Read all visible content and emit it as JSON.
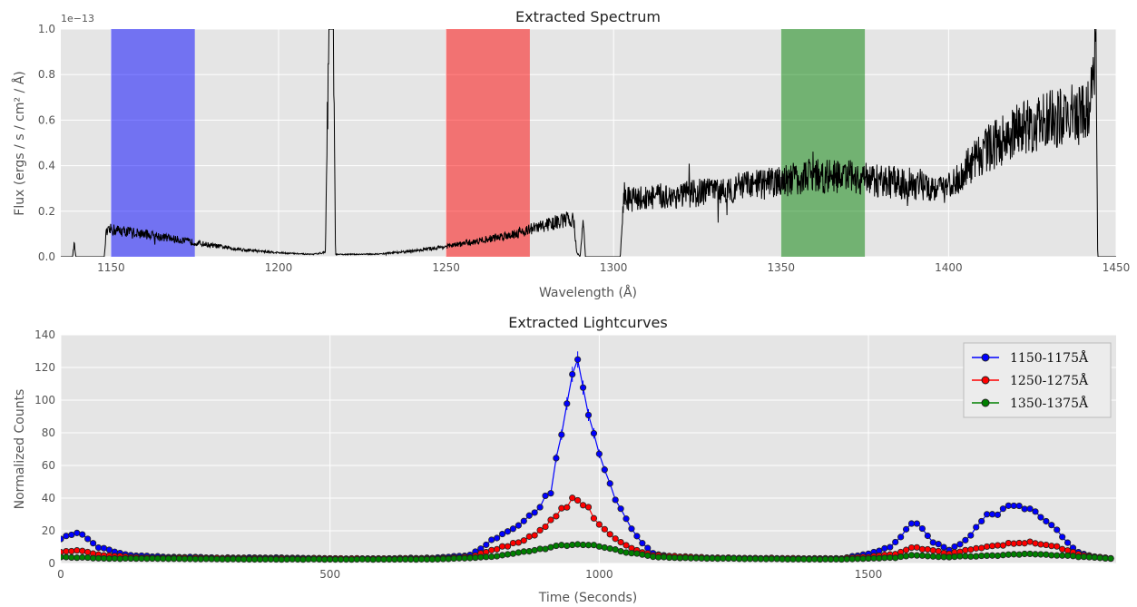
{
  "chart_data": [
    {
      "type": "line",
      "title": "Extracted Spectrum",
      "xlabel": "Wavelength (Å)",
      "ylabel": "Flux (ergs / s / cm² / Å)",
      "y_offset_label": "1e−13",
      "xlim": [
        1135,
        1450
      ],
      "ylim": [
        0.0,
        1.0
      ],
      "xticks": [
        1150,
        1200,
        1250,
        1300,
        1350,
        1400,
        1450
      ],
      "yticks": [
        0.0,
        0.2,
        0.4,
        0.6,
        0.8,
        1.0
      ],
      "grid": true,
      "bands": [
        {
          "x0": 1150,
          "x1": 1175,
          "color": "#0000ff"
        },
        {
          "x0": 1250,
          "x1": 1275,
          "color": "#ff0000"
        },
        {
          "x0": 1350,
          "x1": 1375,
          "color": "#008000"
        }
      ],
      "series": [
        {
          "color": "#000000",
          "noise_fraction": 0.22,
          "points": [
            [
              1135,
              0.0
            ],
            [
              1138.5,
              0.0
            ],
            [
              1139,
              0.06
            ],
            [
              1139.5,
              0.0
            ],
            [
              1148,
              0.0
            ],
            [
              1148.5,
              0.1
            ],
            [
              1150,
              0.12
            ],
            [
              1160,
              0.1
            ],
            [
              1170,
              0.075
            ],
            [
              1180,
              0.05
            ],
            [
              1190,
              0.03
            ],
            [
              1200,
              0.018
            ],
            [
              1210,
              0.01
            ],
            [
              1214,
              0.02
            ],
            [
              1215,
              1.0
            ],
            [
              1216.3,
              1.0
            ],
            [
              1217,
              0.01
            ],
            [
              1230,
              0.012
            ],
            [
              1240,
              0.025
            ],
            [
              1250,
              0.045
            ],
            [
              1260,
              0.07
            ],
            [
              1270,
              0.1
            ],
            [
              1280,
              0.14
            ],
            [
              1288,
              0.17
            ],
            [
              1289,
              0.02
            ],
            [
              1290,
              0.0
            ],
            [
              1291,
              0.16
            ],
            [
              1291.6,
              0.0
            ],
            [
              1302,
              0.0
            ],
            [
              1303,
              0.25
            ],
            [
              1310,
              0.26
            ],
            [
              1320,
              0.27
            ],
            [
              1330,
              0.29
            ],
            [
              1340,
              0.31
            ],
            [
              1350,
              0.33
            ],
            [
              1360,
              0.36
            ],
            [
              1370,
              0.35
            ],
            [
              1380,
              0.33
            ],
            [
              1390,
              0.32
            ],
            [
              1400,
              0.3
            ],
            [
              1405,
              0.38
            ],
            [
              1410,
              0.46
            ],
            [
              1420,
              0.55
            ],
            [
              1430,
              0.6
            ],
            [
              1440,
              0.63
            ],
            [
              1443,
              0.7
            ],
            [
              1444,
              1.0
            ],
            [
              1444.5,
              0.0
            ],
            [
              1450,
              0.0
            ]
          ]
        }
      ]
    },
    {
      "type": "line",
      "title": "Extracted Lightcurves",
      "xlabel": "Time (Seconds)",
      "ylabel": "Normalized Counts",
      "xlim": [
        0,
        1960
      ],
      "ylim": [
        0,
        140
      ],
      "xticks": [
        0,
        500,
        1000,
        1500
      ],
      "yticks": [
        0,
        20,
        40,
        60,
        80,
        100,
        120,
        140
      ],
      "grid": true,
      "legend_position": "top-right",
      "sample_step_seconds": 10,
      "series": [
        {
          "name": "1150-1175Å",
          "color": "#0000ff",
          "points": [
            [
              0,
              15
            ],
            [
              30,
              19
            ],
            [
              50,
              15
            ],
            [
              70,
              10
            ],
            [
              100,
              7
            ],
            [
              130,
              5
            ],
            [
              200,
              4
            ],
            [
              300,
              3.5
            ],
            [
              400,
              3.5
            ],
            [
              500,
              3
            ],
            [
              600,
              3
            ],
            [
              700,
              3.5
            ],
            [
              760,
              5
            ],
            [
              800,
              14
            ],
            [
              840,
              22
            ],
            [
              880,
              30
            ],
            [
              910,
              45
            ],
            [
              930,
              80
            ],
            [
              950,
              118
            ],
            [
              960,
              119
            ],
            [
              980,
              95
            ],
            [
              1000,
              68
            ],
            [
              1020,
              48
            ],
            [
              1040,
              32
            ],
            [
              1060,
              21
            ],
            [
              1080,
              12
            ],
            [
              1100,
              6
            ],
            [
              1150,
              3.5
            ],
            [
              1300,
              3
            ],
            [
              1450,
              3
            ],
            [
              1500,
              6
            ],
            [
              1540,
              10
            ],
            [
              1560,
              17
            ],
            [
              1580,
              25
            ],
            [
              1600,
              22
            ],
            [
              1620,
              13
            ],
            [
              1650,
              8
            ],
            [
              1680,
              14
            ],
            [
              1700,
              22
            ],
            [
              1720,
              29
            ],
            [
              1750,
              32
            ],
            [
              1770,
              37
            ],
            [
              1800,
              32
            ],
            [
              1830,
              27
            ],
            [
              1860,
              16
            ],
            [
              1890,
              7
            ],
            [
              1920,
              4
            ],
            [
              1950,
              3
            ]
          ]
        },
        {
          "name": "1250-1275Å",
          "color": "#ff0000",
          "points": [
            [
              0,
              7
            ],
            [
              30,
              8
            ],
            [
              80,
              5
            ],
            [
              150,
              3.5
            ],
            [
              400,
              3
            ],
            [
              700,
              3
            ],
            [
              760,
              4
            ],
            [
              800,
              8
            ],
            [
              860,
              14
            ],
            [
              900,
              22
            ],
            [
              940,
              36
            ],
            [
              955,
              40
            ],
            [
              980,
              33
            ],
            [
              1000,
              24
            ],
            [
              1030,
              15
            ],
            [
              1060,
              9
            ],
            [
              1100,
              5
            ],
            [
              1200,
              3.5
            ],
            [
              1450,
              3
            ],
            [
              1500,
              4
            ],
            [
              1550,
              6
            ],
            [
              1580,
              10
            ],
            [
              1600,
              9
            ],
            [
              1650,
              6
            ],
            [
              1700,
              9
            ],
            [
              1760,
              12
            ],
            [
              1800,
              13
            ],
            [
              1850,
              10
            ],
            [
              1900,
              5
            ],
            [
              1950,
              3
            ]
          ]
        },
        {
          "name": "1350-1375Å",
          "color": "#008000",
          "points": [
            [
              0,
              4
            ],
            [
              100,
              3
            ],
            [
              400,
              2.5
            ],
            [
              700,
              2.5
            ],
            [
              800,
              4
            ],
            [
              880,
              8
            ],
            [
              930,
              11
            ],
            [
              955,
              12
            ],
            [
              990,
              11
            ],
            [
              1050,
              7
            ],
            [
              1100,
              4
            ],
            [
              1200,
              3
            ],
            [
              1450,
              2.5
            ],
            [
              1550,
              3.5
            ],
            [
              1580,
              5
            ],
            [
              1650,
              4
            ],
            [
              1750,
              5
            ],
            [
              1800,
              6
            ],
            [
              1850,
              5
            ],
            [
              1950,
              3
            ]
          ]
        }
      ]
    }
  ]
}
